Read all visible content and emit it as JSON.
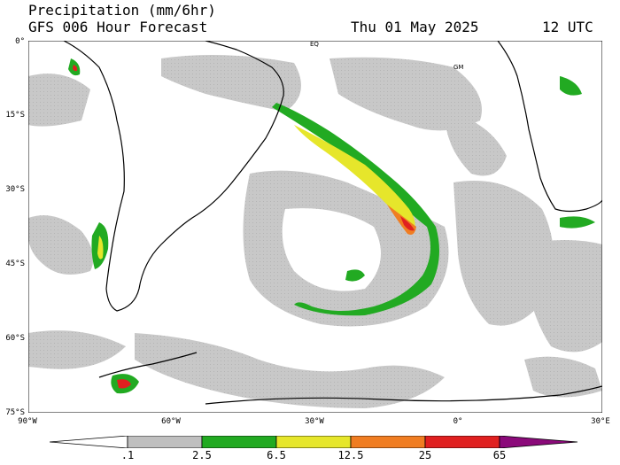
{
  "header": {
    "title": "Precipitation (mm/6hr)",
    "subtitle": "GFS 006 Hour Forecast",
    "date": "Thu 01 May 2025",
    "time": "12 UTC"
  },
  "axes": {
    "lat_ticks": [
      "0°",
      "15°S",
      "30°S",
      "45°S",
      "60°S",
      "75°S"
    ],
    "lon_ticks": [
      "90°W",
      "60°W",
      "30°W",
      "0°",
      "30°E"
    ]
  },
  "map_labels": {
    "eq": "EQ",
    "gm": "GM"
  },
  "colorbar": {
    "ticks": [
      ".1",
      "2.5",
      "6.5",
      "12.5",
      "25",
      "65"
    ],
    "colors": [
      "#bfbfbf",
      "#22aa22",
      "#e6e62b",
      "#f07d22",
      "#e02020",
      "#8b0a7a"
    ]
  },
  "colors": {
    "ocean_bg": "#ffffff",
    "light_precip": "#c8c8c8",
    "coast": "#000000"
  }
}
